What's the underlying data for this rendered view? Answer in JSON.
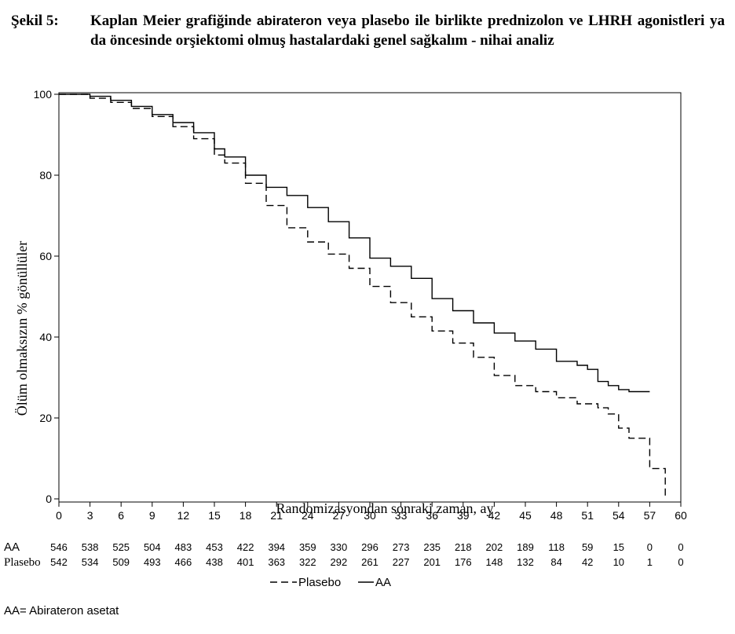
{
  "caption": {
    "label": "Şekil 5:",
    "text_before": "Kaplan Meier grafiğinde",
    "drug": "abirateron",
    "text_after": "veya plasebo ile birlikte prednizolon ve LHRH agonistleri ya da öncesinde orşiektomi olmuş hastalardaki genel sağkalım - nihai analiz"
  },
  "footnote": "AA= Abirateron asetat",
  "chart_data": {
    "type": "line",
    "xlabel": "Randomizasyondan sonraki zaman, ay",
    "ylabel": "Ölüm olmaksızın % gönüllüler",
    "xlim": [
      0,
      60
    ],
    "ylim": [
      0,
      100
    ],
    "x_ticks": [
      "0",
      "3",
      "6",
      "9",
      "12",
      "15",
      "18",
      "21",
      "24",
      "27",
      "30",
      "33",
      "36",
      "39",
      "42",
      "45",
      "48",
      "51",
      "54",
      "57",
      "60"
    ],
    "y_ticks": [
      "0",
      "20",
      "40",
      "60",
      "80",
      "100"
    ],
    "grid": false,
    "legend_position": "bottom-center",
    "series": [
      {
        "name": "AA",
        "line_style": "solid",
        "color": "#000000",
        "x": [
          0,
          1,
          2,
          3,
          5,
          7,
          9,
          11,
          13,
          15,
          16,
          18,
          20,
          22,
          24,
          26,
          28,
          30,
          32,
          34,
          36,
          38,
          40,
          42,
          44,
          46,
          48,
          50,
          51,
          52,
          53,
          54,
          55,
          56,
          57
        ],
        "y": [
          100,
          100,
          100,
          99.5,
          98.5,
          97,
          95,
          93,
          90.5,
          86.5,
          84.5,
          80,
          77,
          75,
          72,
          68.5,
          64.5,
          59.5,
          57.5,
          54.5,
          49.5,
          46.5,
          43.5,
          41,
          39,
          37,
          34,
          33,
          32,
          29,
          28,
          27,
          26.5,
          26.5,
          26.5
        ]
      },
      {
        "name": "Plasebo",
        "line_style": "dashed",
        "color": "#000000",
        "x": [
          0,
          1,
          2,
          3,
          5,
          7,
          9,
          11,
          13,
          15,
          16,
          18,
          20,
          22,
          24,
          26,
          28,
          30,
          32,
          34,
          36,
          38,
          40,
          42,
          44,
          46,
          48,
          50,
          52,
          53,
          54,
          55,
          56,
          57,
          58,
          58.5
        ],
        "y": [
          100,
          100,
          100,
          99,
          98,
          96.5,
          94.5,
          92,
          89,
          85,
          83,
          78,
          72.5,
          67,
          63.5,
          60.5,
          57,
          52.5,
          48.5,
          45,
          41.5,
          38.5,
          35,
          30.5,
          28,
          26.5,
          25,
          23.5,
          22.5,
          21,
          17.5,
          15,
          15,
          7.5,
          7.5,
          0
        ]
      }
    ],
    "risk_table": {
      "rows": [
        {
          "label": "AA",
          "values": [
            "546",
            "538",
            "525",
            "504",
            "483",
            "453",
            "422",
            "394",
            "359",
            "330",
            "296",
            "273",
            "235",
            "218",
            "202",
            "189",
            "118",
            "59",
            "15",
            "0",
            "0"
          ]
        },
        {
          "label": "Plasebo",
          "values": [
            "542",
            "534",
            "509",
            "493",
            "466",
            "438",
            "401",
            "363",
            "322",
            "292",
            "261",
            "227",
            "201",
            "176",
            "148",
            "132",
            "84",
            "42",
            "10",
            "1",
            "0"
          ]
        }
      ]
    }
  }
}
